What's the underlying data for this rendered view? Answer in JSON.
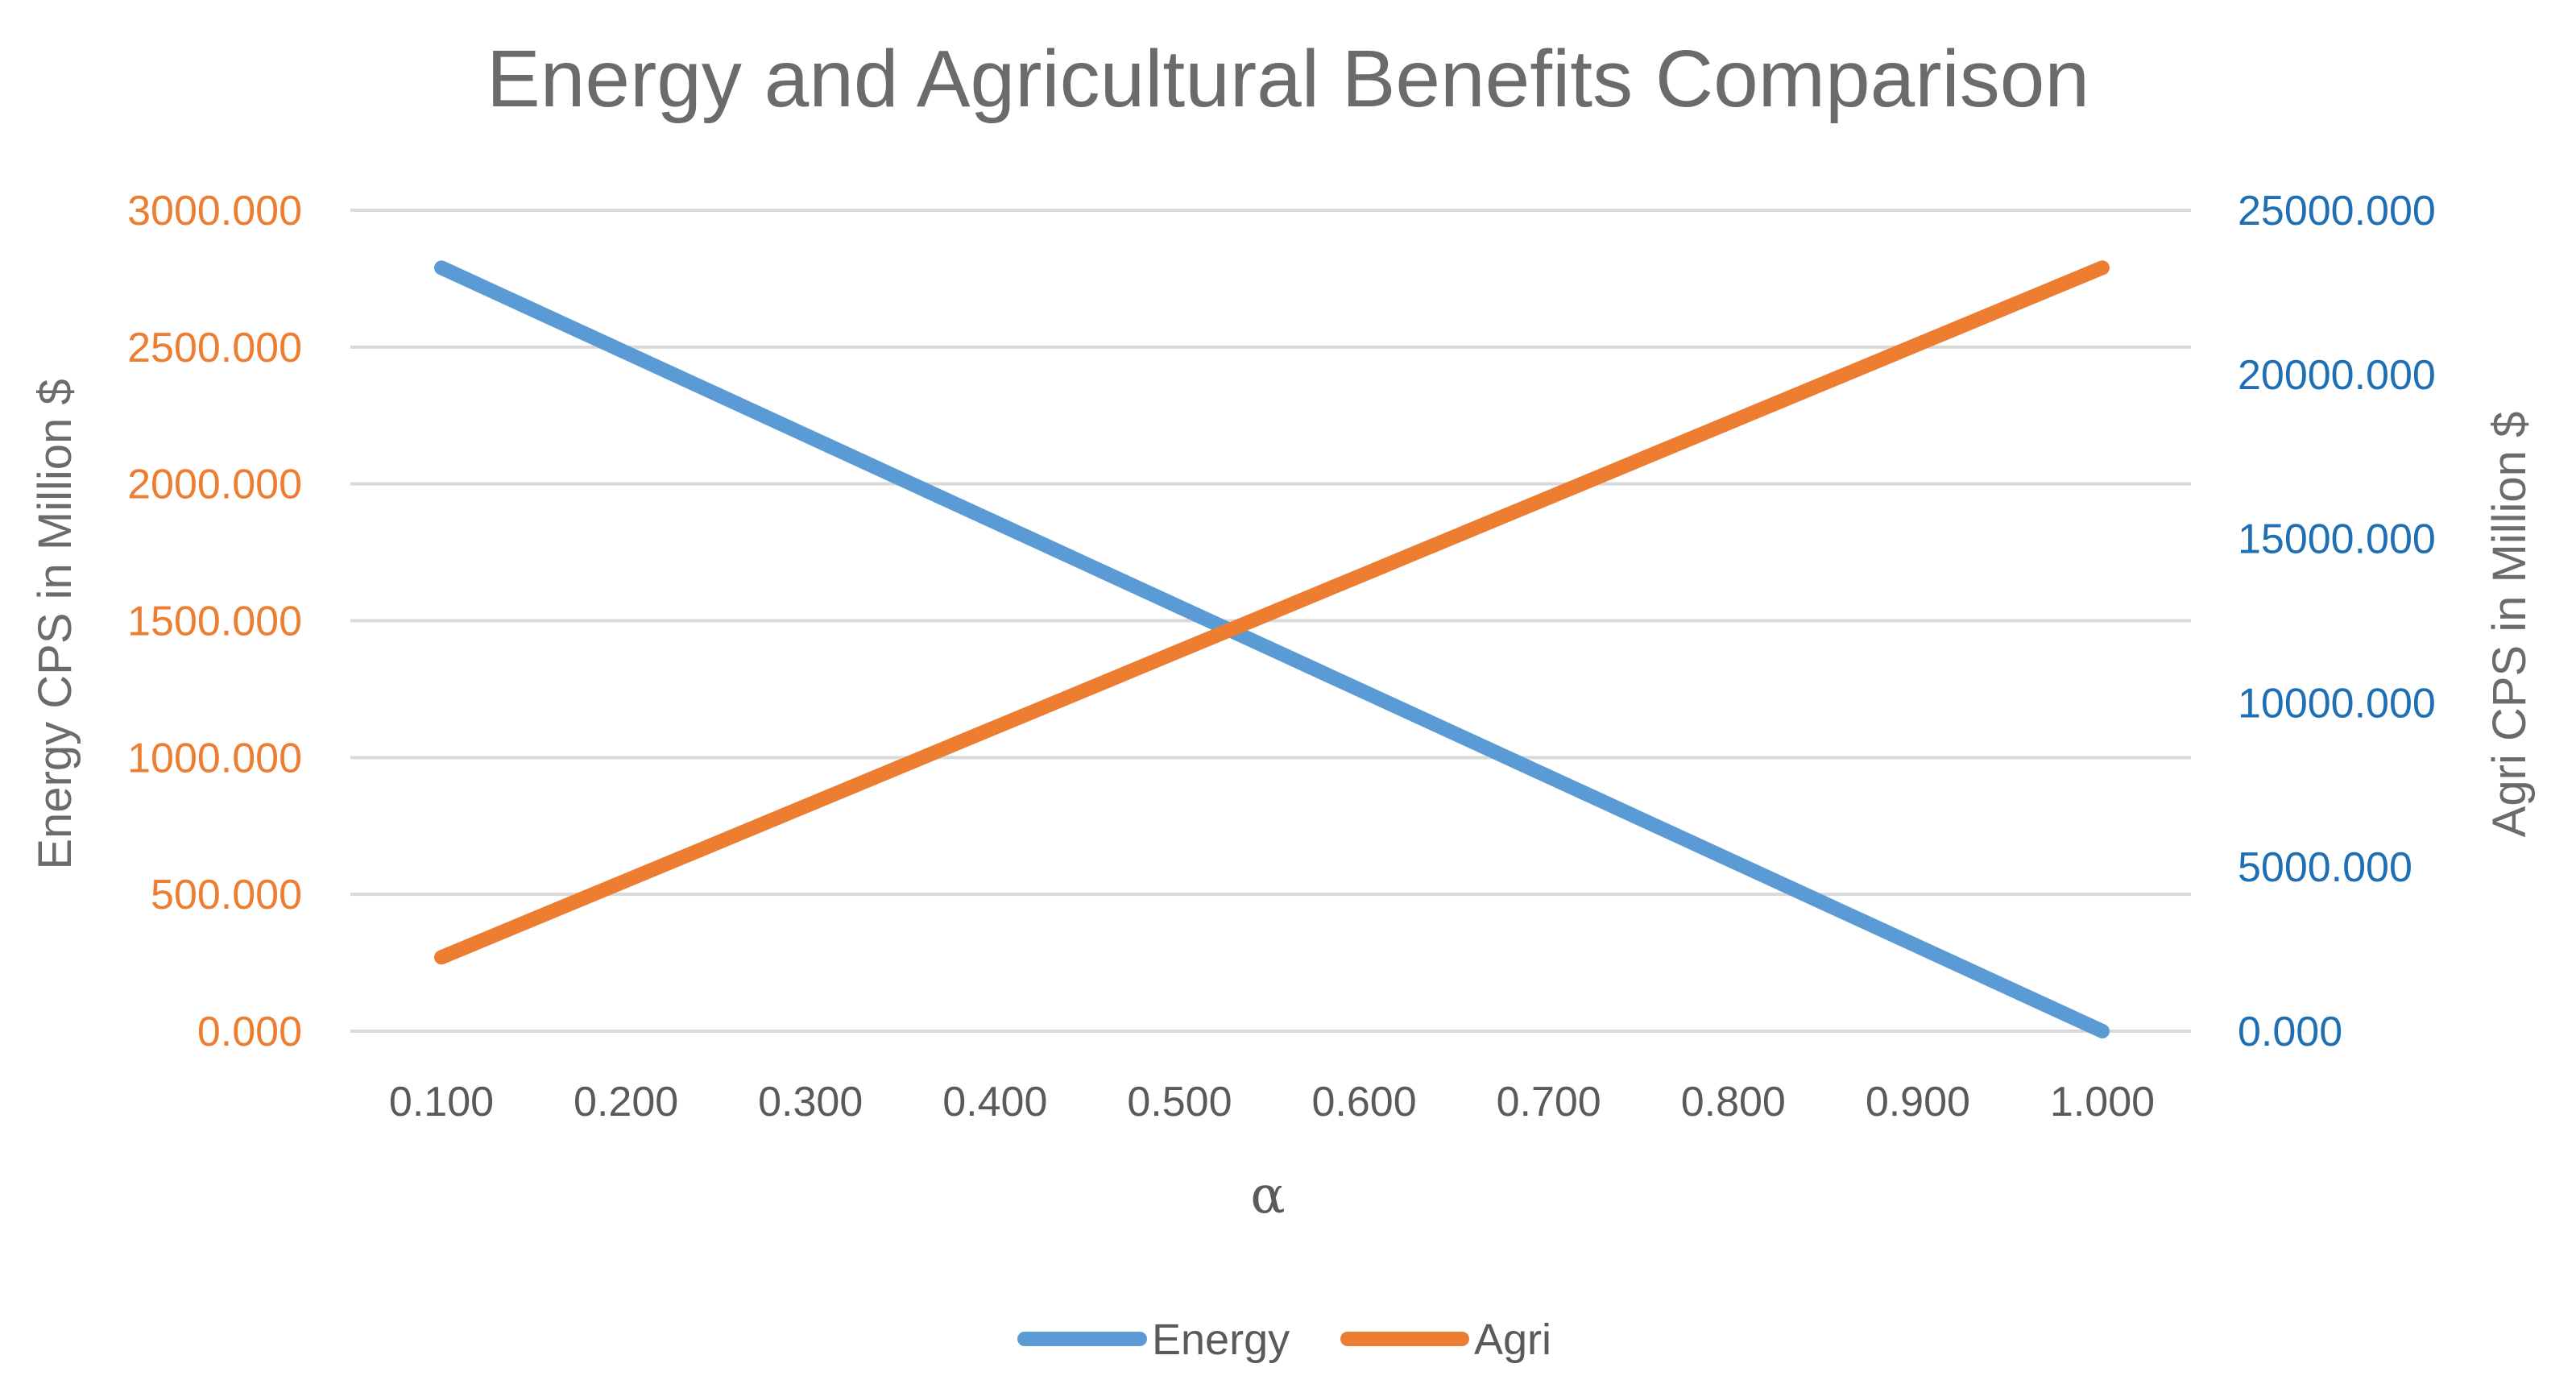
{
  "chart_data": {
    "type": "line",
    "title": "Energy and Agricultural Benefits Comparison",
    "xlabel": "α",
    "ylabel_left": "Energy CPS in Million $",
    "ylabel_right": "Agri CPS in Million $",
    "x": [
      0.1,
      0.2,
      0.3,
      0.4,
      0.5,
      0.6,
      0.7,
      0.8,
      0.9,
      1.0
    ],
    "x_tick_labels": [
      "0.100",
      "0.200",
      "0.300",
      "0.400",
      "0.500",
      "0.600",
      "0.700",
      "0.800",
      "0.900",
      "1.000"
    ],
    "y_left_ticks": [
      "0.000",
      "500.000",
      "1000.000",
      "1500.000",
      "2000.000",
      "2500.000",
      "3000.000"
    ],
    "y_right_ticks": [
      "0.000",
      "5000.000",
      "10000.000",
      "15000.000",
      "20000.000",
      "25000.000"
    ],
    "ylim_left": [
      0,
      3000
    ],
    "ylim_right": [
      0,
      25000
    ],
    "grid": true,
    "legend_position": "bottom-center",
    "series": [
      {
        "name": "Energy",
        "axis": "left",
        "color": "#5b9bd5",
        "values": [
          2790,
          2480,
          2170,
          1860,
          1550,
          1240,
          930,
          620,
          310,
          0
        ]
      },
      {
        "name": "Agri",
        "axis": "left",
        "color": "#ed7d31",
        "values": [
          270,
          550,
          830,
          1110,
          1390,
          1670,
          1950,
          2230,
          2510,
          2790
        ]
      }
    ],
    "colors": {
      "left_axis_text": "#ed7d31",
      "right_axis_text": "#1f6fb4",
      "grid": "#d9d9d9"
    }
  }
}
